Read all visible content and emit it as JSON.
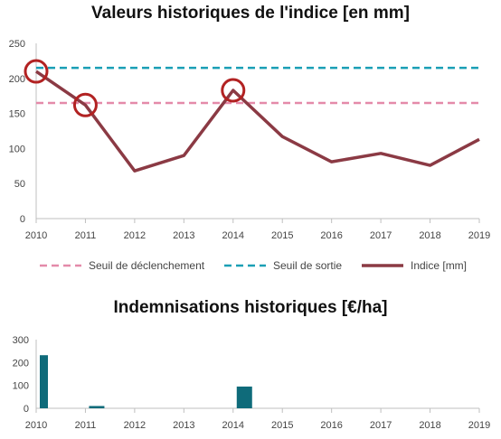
{
  "chart_data": [
    {
      "type": "line",
      "title": "Valeurs historiques de l'indice [en mm]",
      "x": [
        2010,
        2011,
        2012,
        2013,
        2014,
        2015,
        2016,
        2017,
        2018,
        2019
      ],
      "ylim": [
        0,
        250
      ],
      "yticks": [
        0,
        50,
        100,
        150,
        200,
        250
      ],
      "legend_position": "bottom",
      "series": [
        {
          "name": "Seuil de déclenchement",
          "style": "dashed",
          "color": "#e48aa9",
          "values": [
            165,
            165,
            165,
            165,
            165,
            165,
            165,
            165,
            165,
            165
          ]
        },
        {
          "name": "Seuil de sortie",
          "style": "dashed",
          "color": "#1a9fb5",
          "values": [
            215,
            215,
            215,
            215,
            215,
            215,
            215,
            215,
            215,
            215
          ]
        },
        {
          "name": "Indice [mm]",
          "style": "solid",
          "color": "#8b3a44",
          "values": [
            210,
            162,
            68,
            90,
            183,
            117,
            81,
            93,
            76,
            113
          ]
        }
      ],
      "highlighted_years": [
        2010,
        2011,
        2014
      ],
      "highlight_color": "#b22222"
    },
    {
      "type": "bar",
      "title": "Indemnisations historiques [€/ha]",
      "categories": [
        2010,
        2011,
        2012,
        2013,
        2014,
        2015,
        2016,
        2017,
        2018,
        2019
      ],
      "values": [
        232,
        10,
        0,
        0,
        95,
        0,
        0,
        0,
        0,
        0
      ],
      "ylim": [
        0,
        300
      ],
      "yticks": [
        0,
        100,
        200,
        300
      ],
      "color": "#0f6b7a"
    }
  ]
}
